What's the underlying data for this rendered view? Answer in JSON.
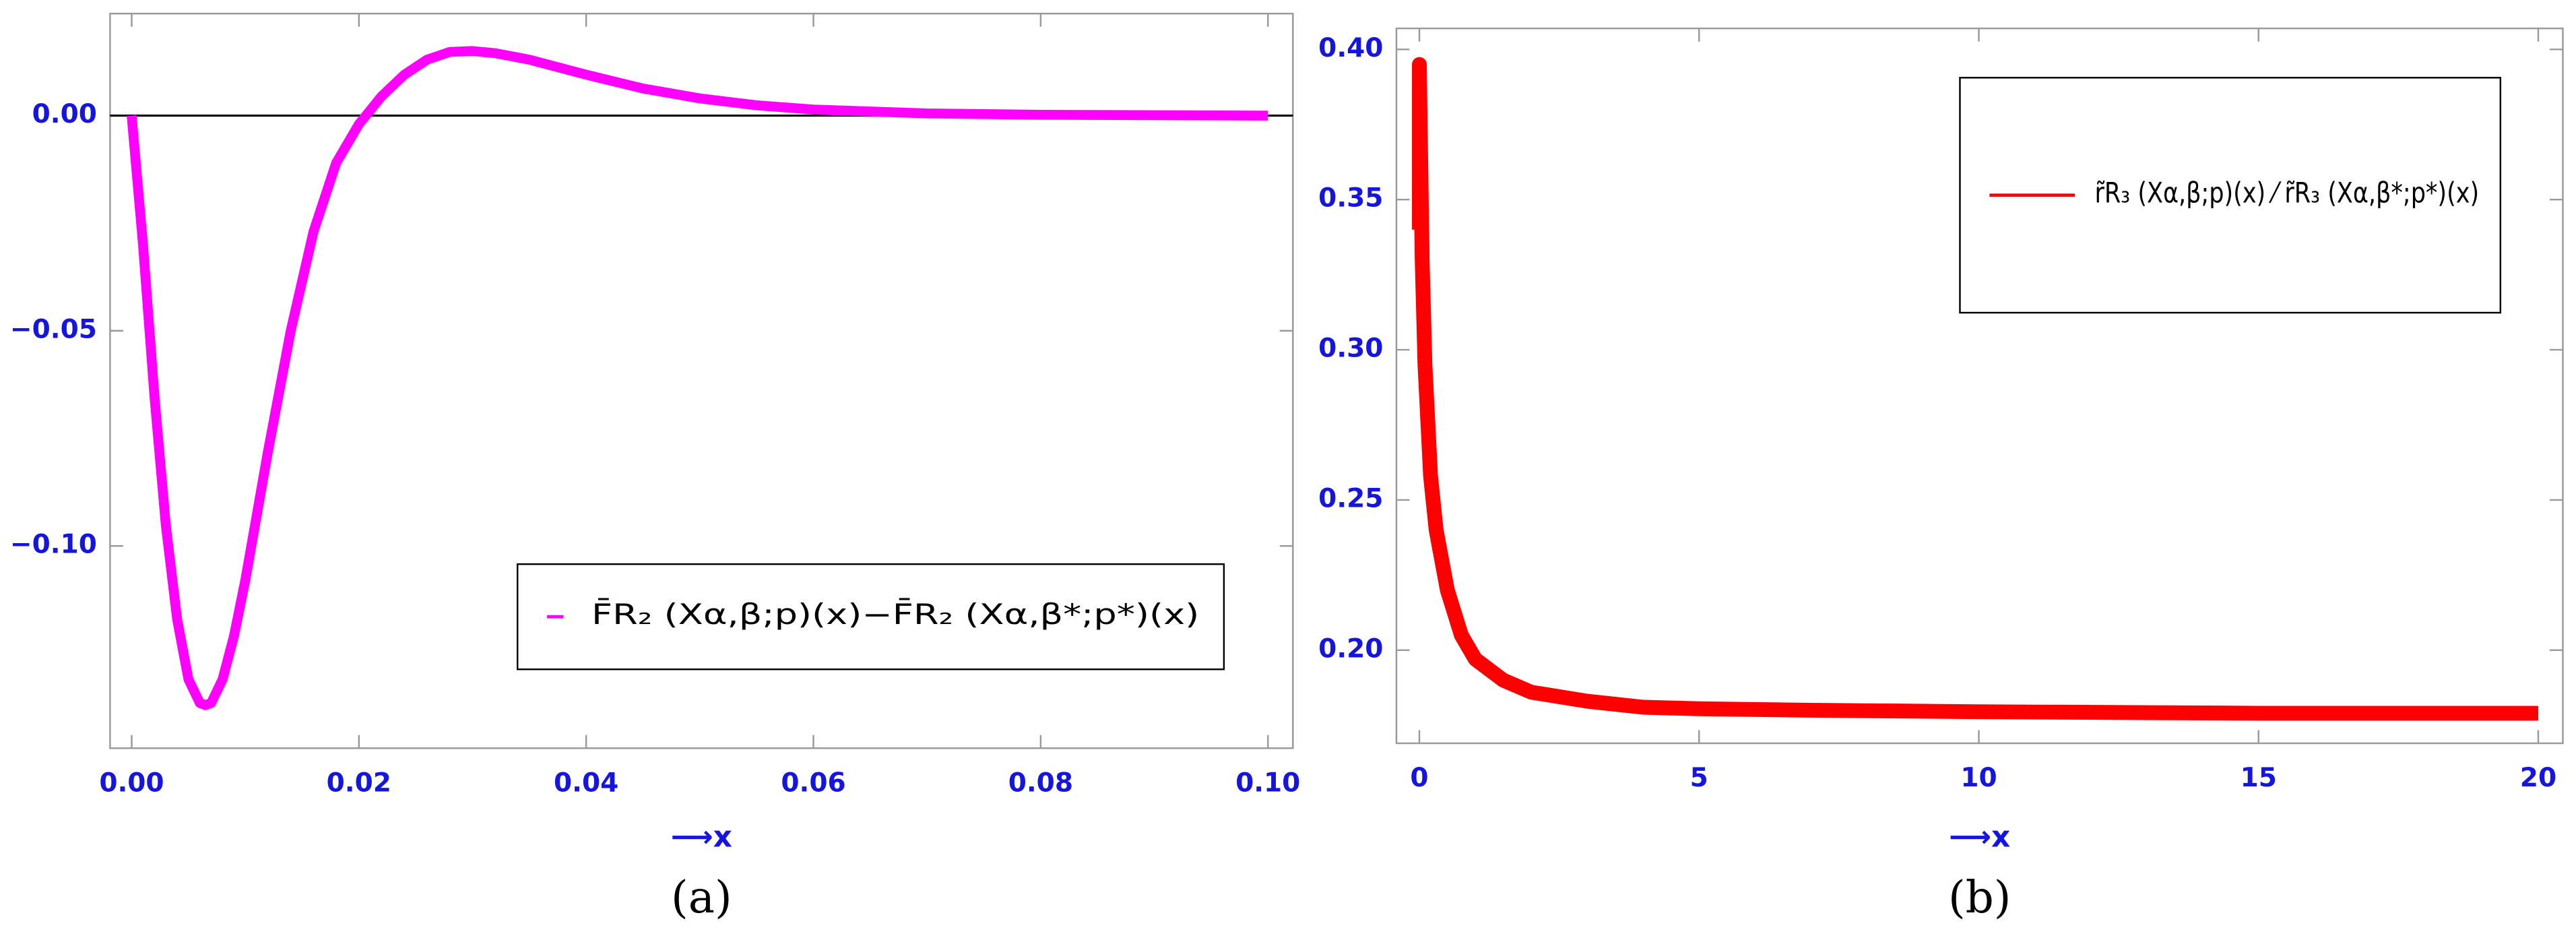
{
  "chart_data": [
    {
      "type": "line",
      "x": [
        0,
        0.001,
        0.002,
        0.003,
        0.004,
        0.005,
        0.006,
        0.0065,
        0.007,
        0.008,
        0.009,
        0.01,
        0.012,
        0.014,
        0.016,
        0.018,
        0.02,
        0.022,
        0.024,
        0.026,
        0.028,
        0.03,
        0.032,
        0.035,
        0.04,
        0.045,
        0.05,
        0.055,
        0.06,
        0.07,
        0.08,
        0.09,
        0.1
      ],
      "series": [
        {
          "name": "F̄R₂ (Xα,β;p)(x)−F̄R₂ (Xα,β*;p*)(x)",
          "color": "#ff00ff",
          "values": [
            0,
            -0.03,
            -0.065,
            -0.095,
            -0.117,
            -0.131,
            -0.1365,
            -0.137,
            -0.1365,
            -0.131,
            -0.121,
            -0.108,
            -0.078,
            -0.05,
            -0.027,
            -0.011,
            -0.002,
            0.0045,
            0.0095,
            0.013,
            0.0148,
            0.015,
            0.0145,
            0.013,
            0.0095,
            0.0063,
            0.004,
            0.0024,
            0.0014,
            0.0005,
            0.0002,
            0.0001,
            0
          ]
        }
      ],
      "xlim": [
        -0.0019,
        0.1022
      ],
      "ylim": [
        -0.147,
        0.0237
      ],
      "xticks": [
        {
          "value": 0,
          "label": "0.00"
        },
        {
          "value": 0.02,
          "label": "0.02"
        },
        {
          "value": 0.04,
          "label": "0.04"
        },
        {
          "value": 0.06,
          "label": "0.06"
        },
        {
          "value": 0.08,
          "label": "0.08"
        },
        {
          "value": 0.1,
          "label": "0.10"
        }
      ],
      "yticks": [
        {
          "value": -0.1,
          "label": "−0.10"
        },
        {
          "value": -0.05,
          "label": "−0.05"
        },
        {
          "value": 0,
          "label": "0.00"
        }
      ],
      "zero_line": true,
      "legend": "lower right",
      "xlabel": "⟶x",
      "caption": "(a)"
    },
    {
      "type": "line",
      "x": [
        0,
        0,
        0.05,
        0.1,
        0.2,
        0.3,
        0.5,
        0.75,
        1,
        1.5,
        2,
        3,
        4,
        5,
        7,
        10,
        15,
        20
      ],
      "series": [
        {
          "name": "r̃R₃ (Xα,β;p)(x) ⁄ r̃R₃ (Xα,β*;p*)(x)",
          "color": "#ff0000",
          "values": [
            0.34,
            0.395,
            0.33,
            0.295,
            0.258,
            0.24,
            0.22,
            0.205,
            0.197,
            0.19,
            0.186,
            0.183,
            0.181,
            0.1805,
            0.18,
            0.1795,
            0.179,
            0.179
          ]
        }
      ],
      "xlim": [
        -0.41,
        20.44
      ],
      "ylim": [
        0.169,
        0.407
      ],
      "xticks": [
        0,
        5,
        10,
        15,
        20
      ],
      "yticks": [
        {
          "value": 0.2,
          "label": "0.20"
        },
        0.25,
        {
          "value": 0.3,
          "label": "0.30"
        },
        0.35,
        {
          "value": 0.4,
          "label": "0.40"
        }
      ],
      "zero_line": false,
      "legend": "upper right",
      "xlabel": "⟶x",
      "caption": "(b)"
    }
  ]
}
